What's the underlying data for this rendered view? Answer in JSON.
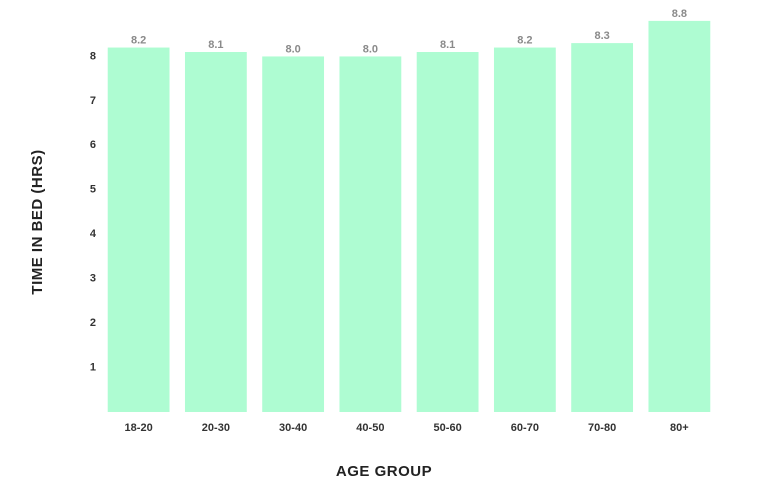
{
  "chart_data": {
    "type": "bar",
    "x_label": "AGE GROUP",
    "y_label": "TIME IN BED (HRS)",
    "categories": [
      "18-20",
      "20-30",
      "30-40",
      "40-50",
      "50-60",
      "60-70",
      "70-80",
      "80+"
    ],
    "values": [
      8.2,
      8.1,
      8.0,
      8.0,
      8.1,
      8.2,
      8.3,
      8.8
    ],
    "value_labels": [
      "8.2",
      "8.1",
      "8.0",
      "8.0",
      "8.1",
      "8.2",
      "8.3",
      "8.8"
    ],
    "color": "#aefcd2",
    "ylim": [
      0,
      9
    ],
    "yticks": [
      1,
      2,
      3,
      4,
      5,
      6,
      7,
      8
    ],
    "grid": false
  }
}
